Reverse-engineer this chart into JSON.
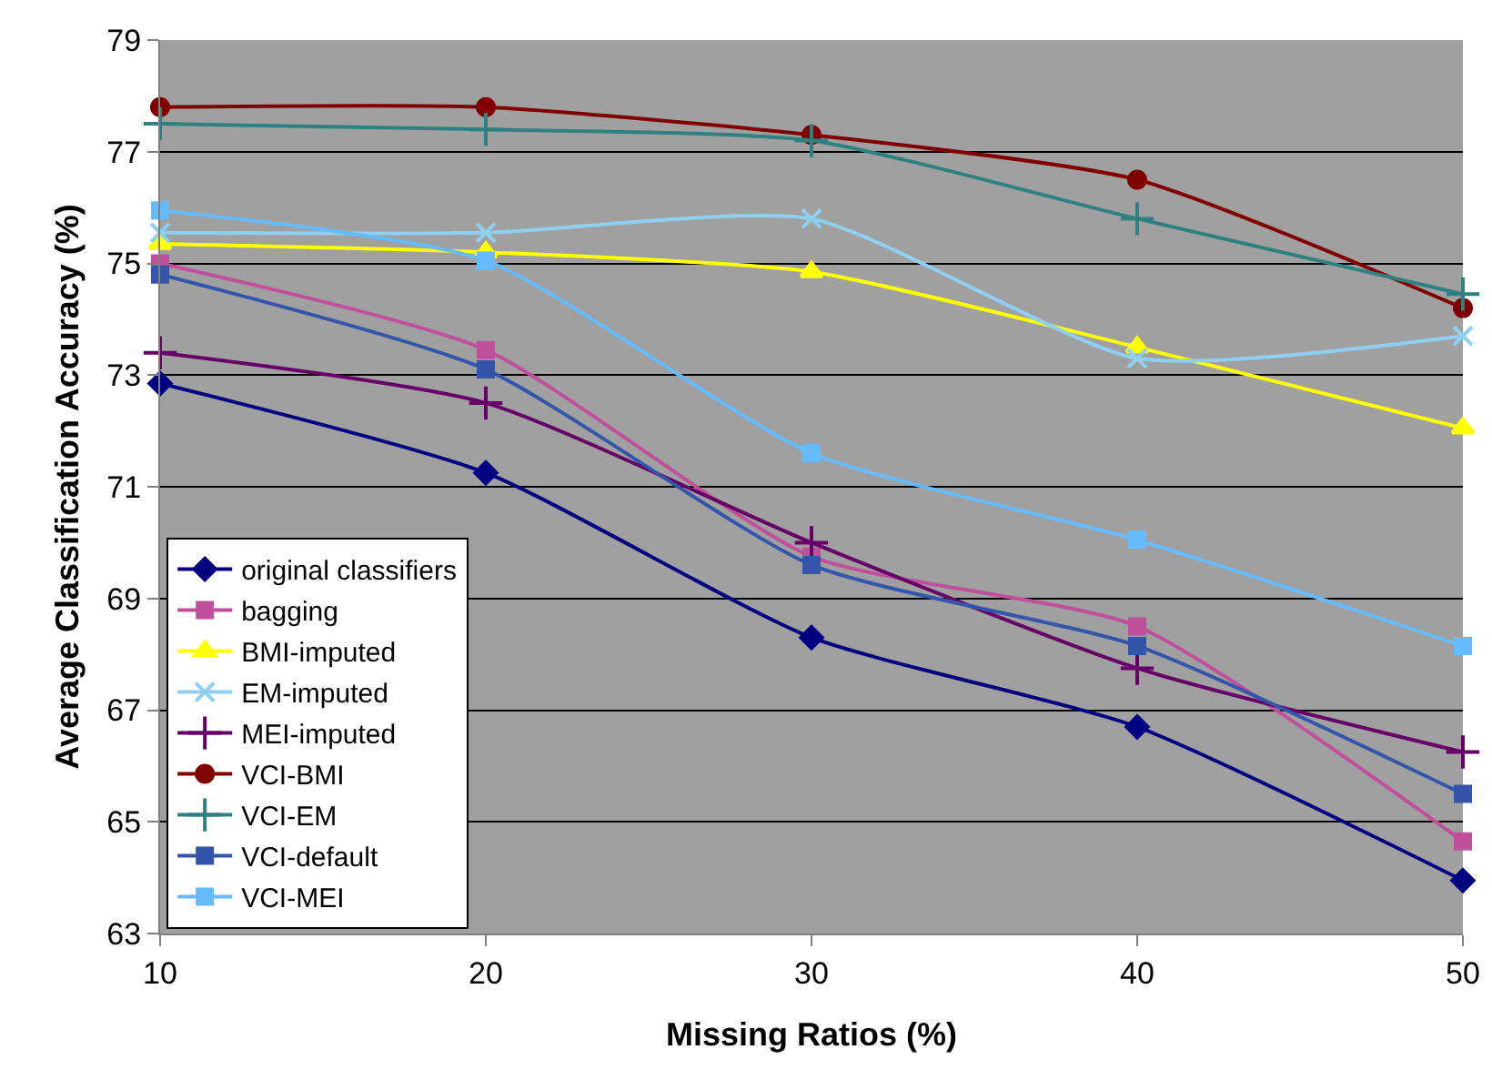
{
  "chart_data": {
    "type": "line",
    "xlabel": "Missing Ratios (%)",
    "ylabel": "Average Classification Accuracy (%)",
    "x": [
      10,
      20,
      30,
      40,
      50
    ],
    "xlim": [
      10,
      50
    ],
    "xticks": [
      10,
      20,
      30,
      40,
      50
    ],
    "ylim": [
      63,
      79
    ],
    "yticks": [
      63,
      65,
      67,
      69,
      71,
      73,
      75,
      77,
      79
    ],
    "grid": "y",
    "legend": "bottom left",
    "line_style": "solid",
    "series": [
      {
        "name": "original classifiers",
        "color": "#000080",
        "marker": "diamond",
        "values": [
          72.85,
          71.25,
          68.3,
          66.7,
          63.95
        ]
      },
      {
        "name": "bagging",
        "color": "#c0509b",
        "marker": "square",
        "values": [
          75.0,
          73.45,
          69.75,
          68.5,
          64.65
        ]
      },
      {
        "name": "BMI-imputed",
        "color": "#ffff00",
        "marker": "triangle",
        "values": [
          75.35,
          75.2,
          74.85,
          73.5,
          72.05
        ]
      },
      {
        "name": "EM-imputed",
        "color": "#8fd0f0",
        "marker": "x",
        "values": [
          75.55,
          75.55,
          75.8,
          73.3,
          73.7
        ]
      },
      {
        "name": "MEI-imputed",
        "color": "#660066",
        "marker": "cross",
        "values": [
          73.4,
          72.5,
          70.0,
          67.75,
          66.25
        ]
      },
      {
        "name": "VCI-BMI",
        "color": "#800000",
        "marker": "circle",
        "values": [
          77.8,
          77.8,
          77.3,
          76.5,
          74.2
        ]
      },
      {
        "name": "VCI-EM",
        "color": "#2f8080",
        "marker": "cross",
        "values": [
          77.5,
          77.4,
          77.2,
          75.8,
          74.45
        ]
      },
      {
        "name": "VCI-default",
        "color": "#3355aa",
        "marker": "square",
        "values": [
          74.8,
          73.1,
          69.6,
          68.15,
          65.5
        ]
      },
      {
        "name": "VCI-MEI",
        "color": "#66bbff",
        "marker": "square",
        "values": [
          75.95,
          75.05,
          71.6,
          70.05,
          68.15
        ]
      }
    ]
  }
}
